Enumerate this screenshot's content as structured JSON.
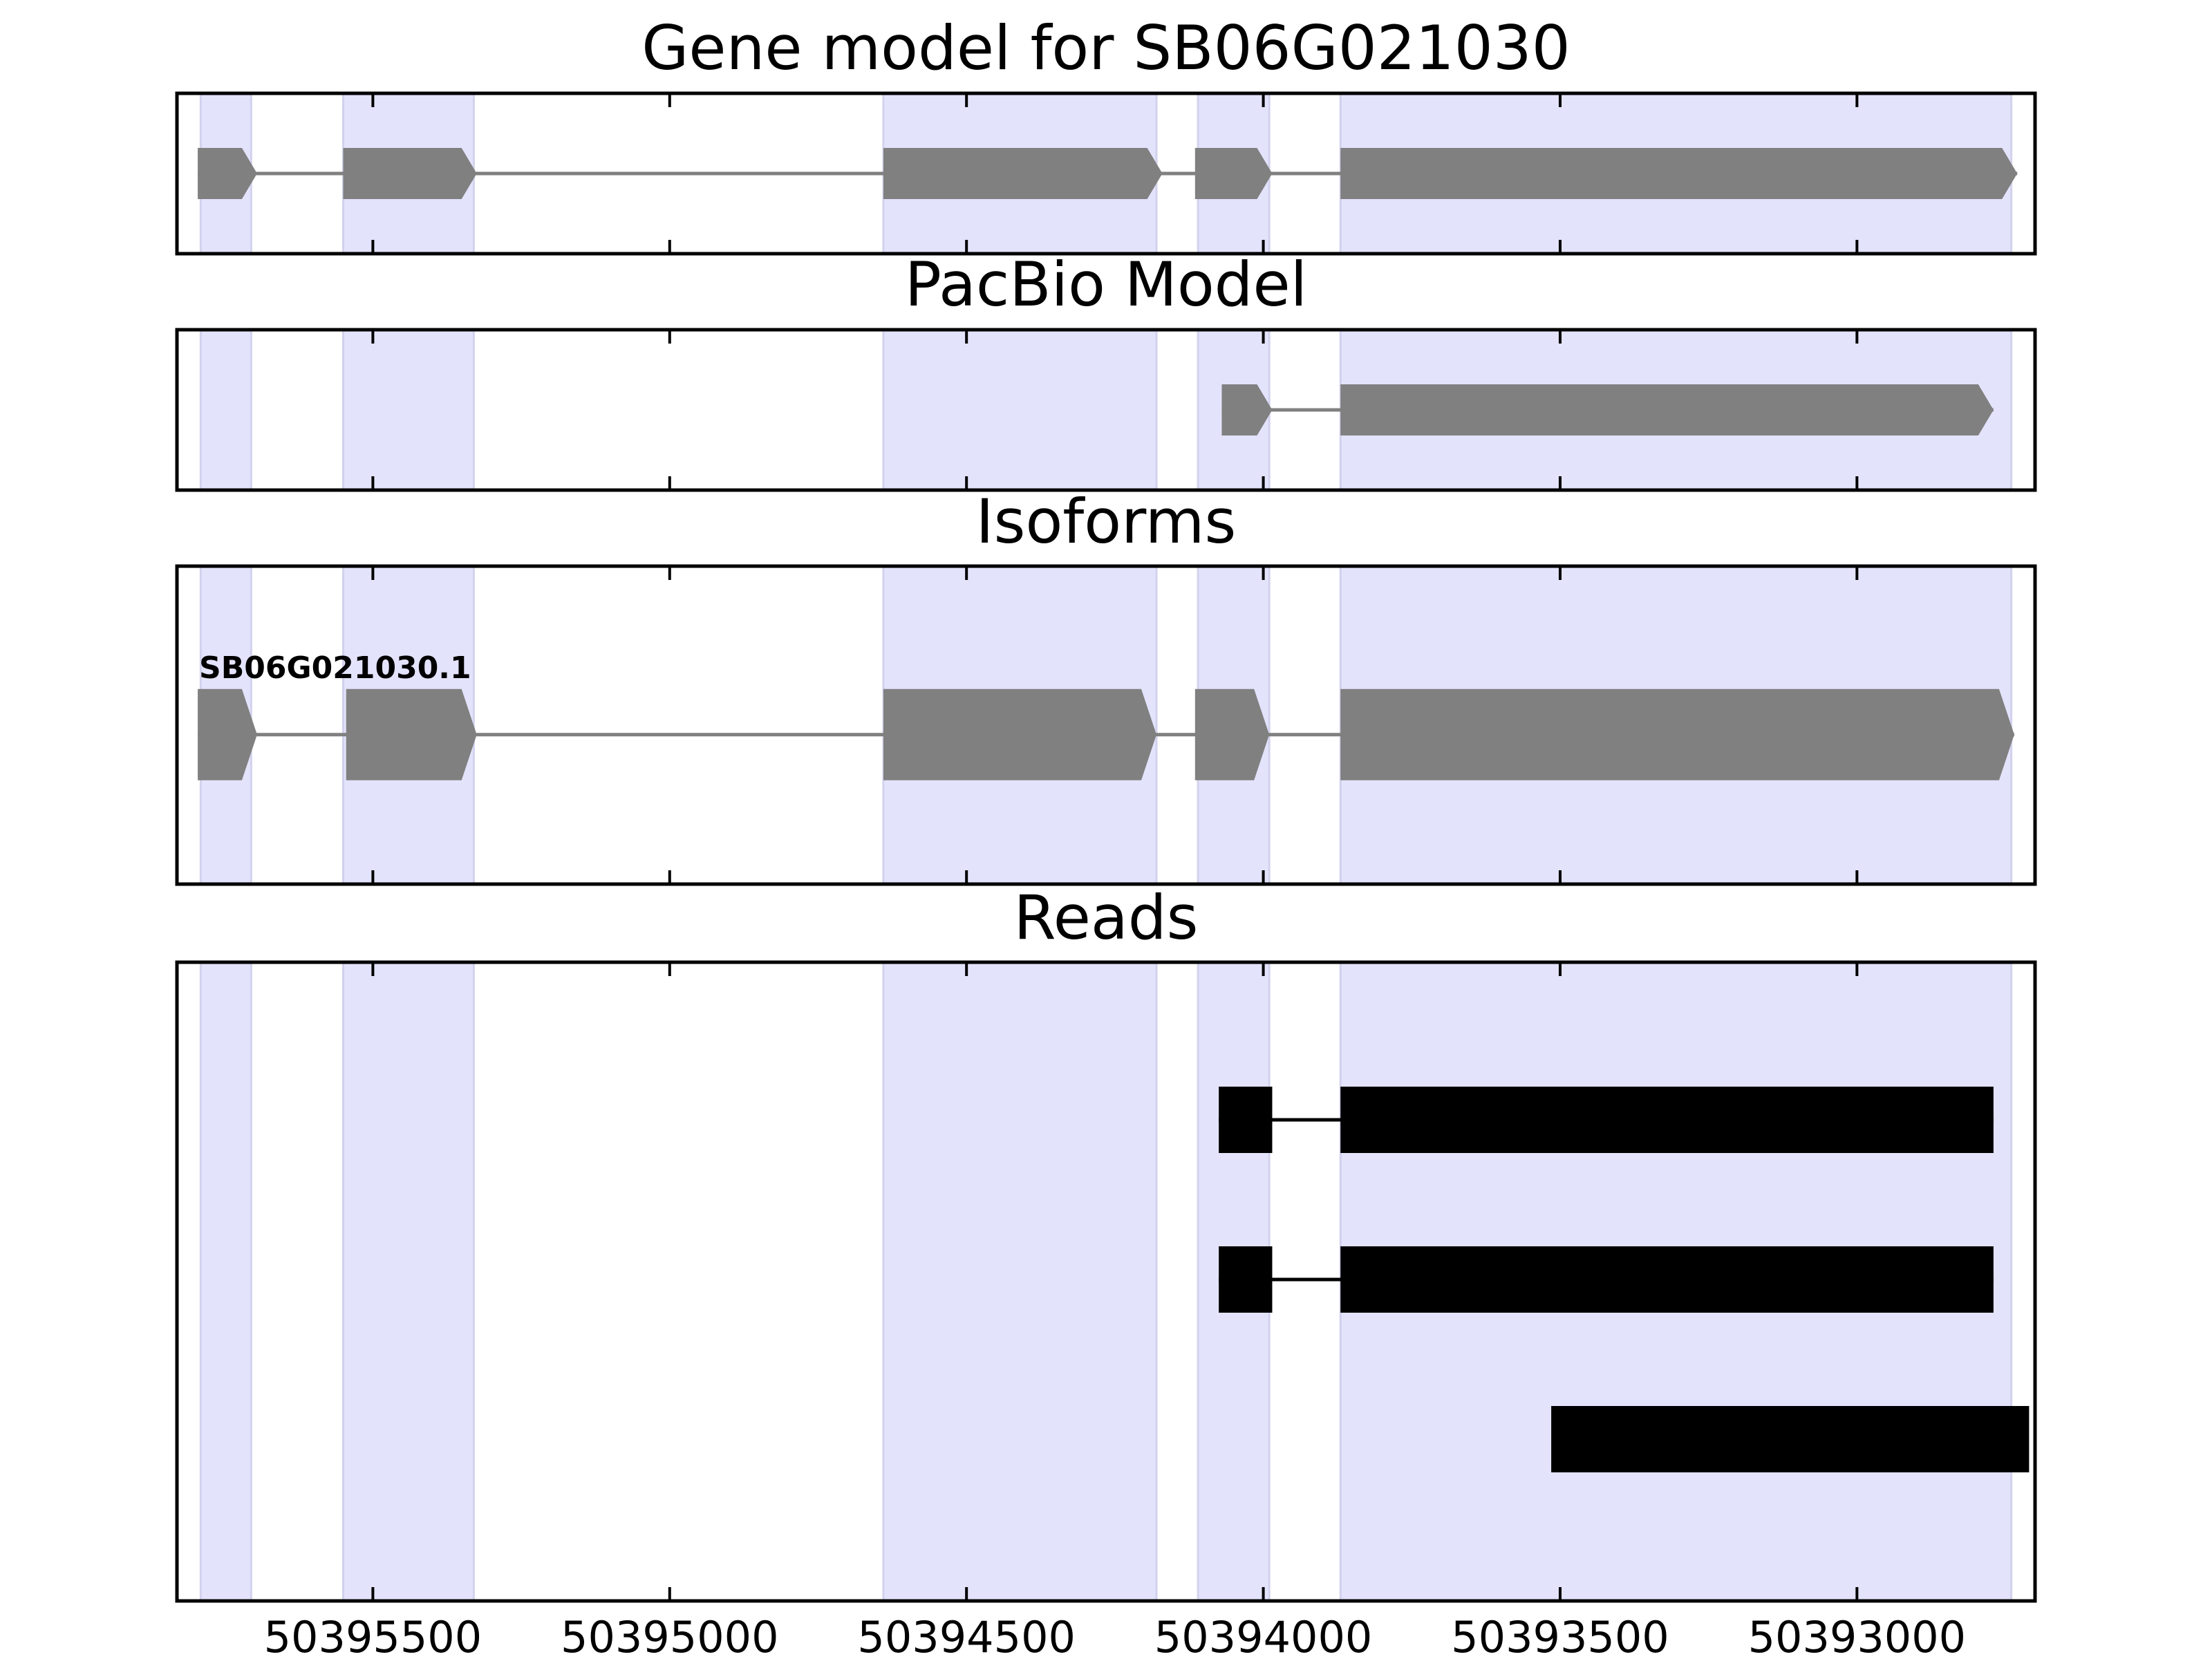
{
  "chart_data": {
    "type": "gene-model",
    "x_axis": {
      "range": [
        50395830,
        50392700
      ],
      "reversed": true,
      "ticks": [
        50395500,
        50395000,
        50394500,
        50394000,
        50393500,
        50393000
      ],
      "tick_labels": [
        "50395500",
        "50395000",
        "50394500",
        "50394000",
        "50393500",
        "50393000"
      ]
    },
    "highlight_color": "#e3e3fc",
    "feature_color": "#808080",
    "read_color": "#000000",
    "shaded_regions": [
      [
        50395790,
        50395705
      ],
      [
        50395550,
        50395330
      ],
      [
        50394640,
        50394180
      ],
      [
        50394110,
        50393990
      ],
      [
        50393870,
        50392740
      ]
    ],
    "panels": [
      {
        "title": "Gene model for SB06G021030",
        "kind": "gene",
        "features": [
          {
            "strand": "-",
            "exons": [
              [
                50395795,
                50395695
              ],
              [
                50395550,
                50395325
              ],
              [
                50394640,
                50394170
              ],
              [
                50394115,
                50393985
              ],
              [
                50393870,
                50392730
              ]
            ]
          }
        ]
      },
      {
        "title": "PacBio Model",
        "kind": "gene",
        "features": [
          {
            "strand": "-",
            "exons": [
              [
                50394070,
                50393985
              ],
              [
                50393870,
                50392770
              ]
            ]
          }
        ]
      },
      {
        "title": "Isoforms",
        "kind": "gene",
        "features": [
          {
            "label": "SB06G021030.1",
            "strand": "-",
            "exons": [
              [
                50395795,
                50395695
              ],
              [
                50395545,
                50395325
              ],
              [
                50394640,
                50394180
              ],
              [
                50394115,
                50393990
              ],
              [
                50393870,
                50392735
              ]
            ]
          }
        ]
      },
      {
        "title": "Reads",
        "kind": "reads",
        "features": [
          {
            "exons": [
              [
                50394075,
                50393985
              ],
              [
                50393870,
                50392770
              ]
            ]
          },
          {
            "exons": [
              [
                50394075,
                50393985
              ],
              [
                50393870,
                50392770
              ]
            ]
          },
          {
            "exons": [
              [
                50393515,
                50392710
              ]
            ]
          }
        ]
      }
    ]
  }
}
